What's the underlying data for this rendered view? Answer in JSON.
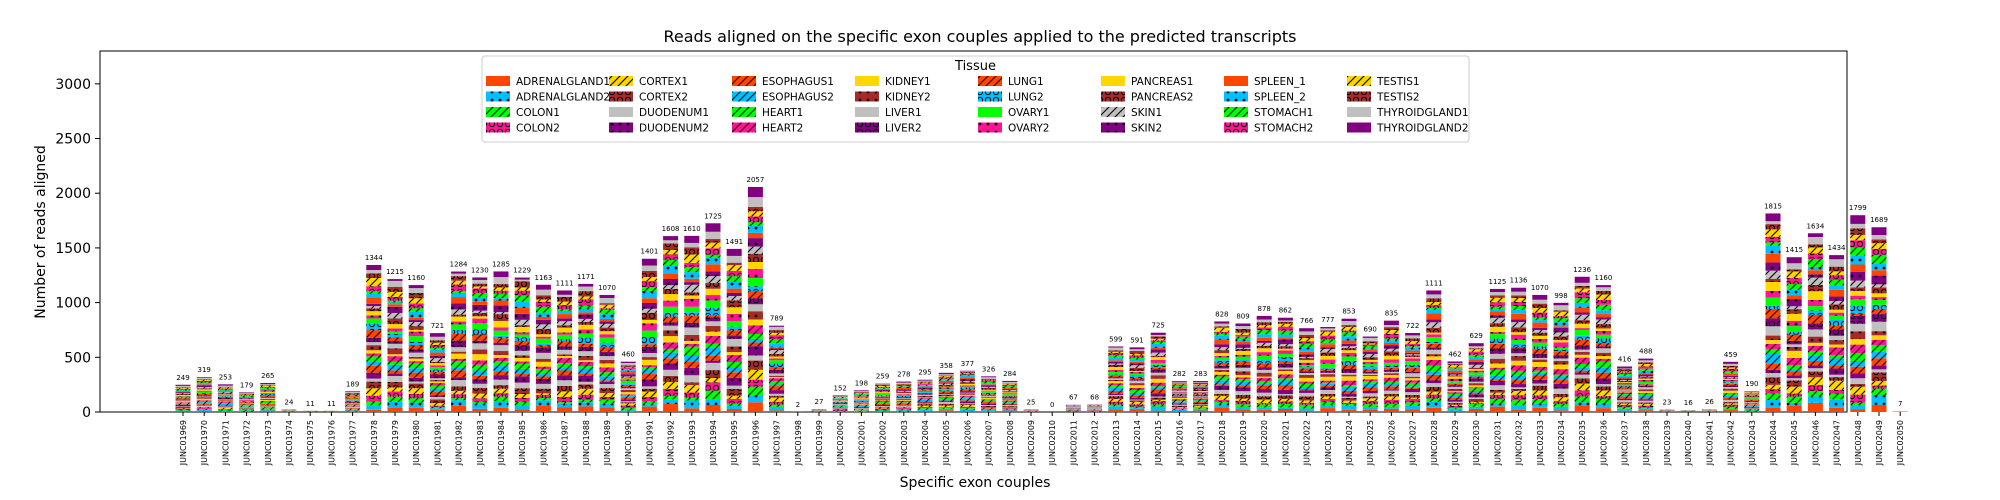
{
  "chart_data": {
    "type": "bar",
    "stacked": true,
    "title": "Reads aligned on the specific exon couples applied to the predicted transcripts",
    "xlabel": "Specific exon couples",
    "ylabel": "Number of reads aligned",
    "ylim": [
      0,
      3300
    ],
    "yticks": [
      0,
      500,
      1000,
      1500,
      2000,
      2500,
      3000
    ],
    "legend": {
      "title": "Tissue",
      "placement": "top-center",
      "columns": 8
    },
    "categories": [
      "JUNC01969",
      "JUNC01970",
      "JUNC01971",
      "JUNC01972",
      "JUNC01973",
      "JUNC01974",
      "JUNC01975",
      "JUNC01976",
      "JUNC01977",
      "JUNC01978",
      "JUNC01979",
      "JUNC01980",
      "JUNC01981",
      "JUNC01982",
      "JUNC01983",
      "JUNC01984",
      "JUNC01985",
      "JUNC01986",
      "JUNC01987",
      "JUNC01988",
      "JUNC01989",
      "JUNC01990",
      "JUNC01991",
      "JUNC01992",
      "JUNC01993",
      "JUNC01994",
      "JUNC01995",
      "JUNC01996",
      "JUNC01997",
      "JUNC01998",
      "JUNC01999",
      "JUNC02000",
      "JUNC02001",
      "JUNC02002",
      "JUNC02003",
      "JUNC02004",
      "JUNC02005",
      "JUNC02006",
      "JUNC02007",
      "JUNC02008",
      "JUNC02009",
      "JUNC02010",
      "JUNC02011",
      "JUNC02012",
      "JUNC02013",
      "JUNC02014",
      "JUNC02015",
      "JUNC02016",
      "JUNC02017",
      "JUNC02018",
      "JUNC02019",
      "JUNC02020",
      "JUNC02021",
      "JUNC02022",
      "JUNC02023",
      "JUNC02024",
      "JUNC02025",
      "JUNC02026",
      "JUNC02027",
      "JUNC02028",
      "JUNC02029",
      "JUNC02030",
      "JUNC02031",
      "JUNC02032",
      "JUNC02033",
      "JUNC02034",
      "JUNC02035",
      "JUNC02036",
      "JUNC02037",
      "JUNC02038",
      "JUNC02039",
      "JUNC02040",
      "JUNC02041",
      "JUNC02042",
      "JUNC02043",
      "JUNC02044",
      "JUNC02045",
      "JUNC02046",
      "JUNC02047",
      "JUNC02048",
      "JUNC02049",
      "JUNC02050"
    ],
    "totals": [
      249,
      319,
      253,
      179,
      265,
      24,
      11,
      11,
      189,
      1344,
      1215,
      1160,
      721,
      1284,
      1230,
      1285,
      1229,
      1163,
      1111,
      1171,
      1070,
      460,
      1401,
      1608,
      1610,
      1725,
      1491,
      2057,
      789,
      2,
      27,
      152,
      198,
      259,
      278,
      295,
      358,
      377,
      326,
      284,
      25,
      0,
      67,
      68,
      599,
      591,
      725,
      282,
      283,
      828,
      809,
      878,
      862,
      766,
      777,
      853,
      690,
      835,
      722,
      1111,
      462,
      629,
      1125,
      1136,
      1070,
      998,
      1236,
      1160,
      416,
      488,
      23,
      16,
      26,
      459,
      190,
      1815,
      1415,
      1634,
      1434,
      1799,
      1689,
      7
    ],
    "series": [
      {
        "name": "ADRENALGLAND1",
        "color": "#ff4500",
        "hatch": "none"
      },
      {
        "name": "ADRENALGLAND2",
        "color": "#00bfff",
        "hatch": "dot"
      },
      {
        "name": "COLON1",
        "color": "#00ff00",
        "hatch": "slash"
      },
      {
        "name": "COLON2",
        "color": "#ff1493",
        "hatch": "circle"
      },
      {
        "name": "CORTEX1",
        "color": "#ffd700",
        "hatch": "slash"
      },
      {
        "name": "CORTEX2",
        "color": "#a52a2a",
        "hatch": "circle"
      },
      {
        "name": "DUODENUM1",
        "color": "#c0c0c0",
        "hatch": "none"
      },
      {
        "name": "DUODENUM2",
        "color": "#800080",
        "hatch": "dot"
      },
      {
        "name": "ESOPHAGUS1",
        "color": "#ff4500",
        "hatch": "slash"
      },
      {
        "name": "ESOPHAGUS2",
        "color": "#00bfff",
        "hatch": "slash"
      },
      {
        "name": "HEART1",
        "color": "#00ff00",
        "hatch": "slash"
      },
      {
        "name": "HEART2",
        "color": "#ff1493",
        "hatch": "slash"
      },
      {
        "name": "KIDNEY1",
        "color": "#ffd700",
        "hatch": "none"
      },
      {
        "name": "KIDNEY2",
        "color": "#a52a2a",
        "hatch": "dot"
      },
      {
        "name": "LIVER1",
        "color": "#c0c0c0",
        "hatch": "none"
      },
      {
        "name": "LIVER2",
        "color": "#800080",
        "hatch": "circle"
      },
      {
        "name": "LUNG1",
        "color": "#ff4500",
        "hatch": "slash"
      },
      {
        "name": "LUNG2",
        "color": "#00bfff",
        "hatch": "circle"
      },
      {
        "name": "OVARY1",
        "color": "#00ff00",
        "hatch": "none"
      },
      {
        "name": "OVARY2",
        "color": "#ff1493",
        "hatch": "dot"
      },
      {
        "name": "PANCREAS1",
        "color": "#ffd700",
        "hatch": "none"
      },
      {
        "name": "PANCREAS2",
        "color": "#a52a2a",
        "hatch": "circle"
      },
      {
        "name": "SKIN1",
        "color": "#c0c0c0",
        "hatch": "slash"
      },
      {
        "name": "SKIN2",
        "color": "#800080",
        "hatch": "dot"
      },
      {
        "name": "SPLEEN_1",
        "color": "#ff4500",
        "hatch": "none"
      },
      {
        "name": "SPLEEN_2",
        "color": "#00bfff",
        "hatch": "dot"
      },
      {
        "name": "STOMACH1",
        "color": "#00ff00",
        "hatch": "slash"
      },
      {
        "name": "STOMACH2",
        "color": "#ff1493",
        "hatch": "circle"
      },
      {
        "name": "TESTIS1",
        "color": "#ffd700",
        "hatch": "slash"
      },
      {
        "name": "TESTIS2",
        "color": "#a52a2a",
        "hatch": "circle"
      },
      {
        "name": "THYROIDGLAND1",
        "color": "#c0c0c0",
        "hatch": "none"
      },
      {
        "name": "THYROIDGLAND2",
        "color": "#800080",
        "hatch": "none"
      }
    ]
  }
}
